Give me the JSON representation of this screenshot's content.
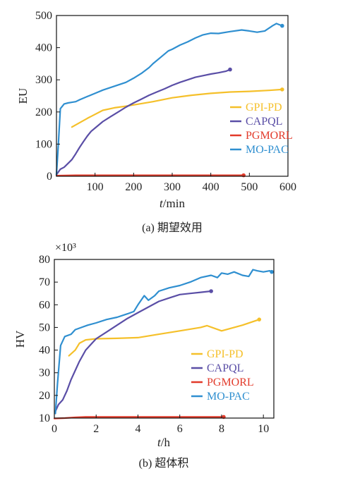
{
  "chart_data": [
    {
      "type": "line",
      "caption": "(a) 期望效用",
      "xlabel_var": "t",
      "xlabel_unit": "/min",
      "ylabel": "EU",
      "xlim": [
        0,
        600
      ],
      "ylim": [
        0,
        500
      ],
      "xticks": [
        100,
        200,
        300,
        400,
        500,
        600
      ],
      "yticks": [
        0,
        100,
        200,
        300,
        400,
        500
      ],
      "legend_position": "center-right",
      "series": [
        {
          "name": "GPI-PD",
          "color": "#f5c02a",
          "x": [
            40,
            80,
            120,
            150,
            180,
            200,
            250,
            300,
            350,
            400,
            450,
            500,
            550,
            585
          ],
          "y": [
            153,
            180,
            205,
            213,
            218,
            222,
            232,
            244,
            252,
            258,
            262,
            264,
            267,
            270
          ]
        },
        {
          "name": "CAPQL",
          "color": "#5a4ea6",
          "x": [
            0,
            10,
            20,
            30,
            40,
            50,
            60,
            70,
            80,
            90,
            100,
            120,
            140,
            160,
            180,
            200,
            220,
            240,
            260,
            280,
            300,
            320,
            340,
            360,
            380,
            400,
            420,
            440,
            450
          ],
          "y": [
            5,
            22,
            28,
            40,
            52,
            70,
            90,
            108,
            125,
            140,
            150,
            170,
            185,
            200,
            215,
            228,
            240,
            252,
            262,
            272,
            283,
            292,
            300,
            308,
            313,
            318,
            322,
            327,
            332
          ]
        },
        {
          "name": "PGMORL",
          "color": "#e23a2a",
          "x": [
            0,
            50,
            100,
            200,
            300,
            400,
            485
          ],
          "y": [
            2,
            3,
            3,
            3,
            3,
            3,
            3
          ]
        },
        {
          "name": "MO-PAC",
          "color": "#2f8fd0",
          "x": [
            0,
            5,
            10,
            20,
            30,
            40,
            50,
            60,
            80,
            100,
            120,
            150,
            180,
            200,
            220,
            240,
            250,
            270,
            290,
            300,
            320,
            340,
            360,
            380,
            400,
            420,
            450,
            480,
            500,
            520,
            540,
            560,
            570,
            585
          ],
          "y": [
            5,
            100,
            210,
            225,
            228,
            230,
            232,
            238,
            248,
            258,
            268,
            280,
            292,
            305,
            320,
            338,
            350,
            370,
            390,
            395,
            408,
            418,
            430,
            440,
            445,
            444,
            450,
            455,
            452,
            448,
            452,
            468,
            475,
            468
          ]
        }
      ]
    },
    {
      "type": "line",
      "caption": "(b) 超体积",
      "scale_label": "×10³",
      "xlabel_var": "t",
      "xlabel_unit": "/h",
      "ylabel": "HV",
      "xlim": [
        0,
        10.5
      ],
      "ylim": [
        10,
        80
      ],
      "xticks": [
        0,
        2,
        4,
        6,
        8,
        10
      ],
      "yticks": [
        10,
        20,
        30,
        40,
        50,
        60,
        70,
        80
      ],
      "legend_position": "center-right",
      "series": [
        {
          "name": "GPI-PD",
          "color": "#f5c02a",
          "x": [
            0.7,
            1.0,
            1.2,
            1.5,
            2.0,
            3.0,
            4.0,
            5.0,
            6.0,
            7.0,
            7.3,
            8.0,
            9.0,
            9.8
          ],
          "y": [
            37.5,
            40,
            43,
            44.5,
            45,
            45.2,
            45.5,
            47,
            48.5,
            50,
            50.8,
            48.5,
            51,
            53.5
          ]
        },
        {
          "name": "CAPQL",
          "color": "#5a4ea6",
          "x": [
            0.05,
            0.2,
            0.4,
            0.6,
            0.8,
            1.0,
            1.2,
            1.5,
            1.8,
            2.0,
            2.5,
            3.0,
            3.5,
            4.0,
            4.5,
            5.0,
            5.5,
            6.0,
            6.5,
            7.0,
            7.5
          ],
          "y": [
            13,
            16,
            18,
            22,
            27,
            31,
            35,
            40,
            43,
            45,
            48,
            51,
            54,
            56.5,
            59,
            61.5,
            63,
            64.5,
            65,
            65.5,
            66
          ]
        },
        {
          "name": "PGMORL",
          "color": "#e23a2a",
          "x": [
            0,
            0.5,
            1.0,
            1.5,
            2.0,
            3.0,
            4.0,
            5.0,
            6.0,
            7.0,
            8.0,
            8.1
          ],
          "y": [
            9.8,
            10,
            10.3,
            10.5,
            10.5,
            10.5,
            10.5,
            10.5,
            10.5,
            10.5,
            10.5,
            10.5
          ]
        },
        {
          "name": "MO-PAC",
          "color": "#2f8fd0",
          "x": [
            0.05,
            0.15,
            0.3,
            0.5,
            0.8,
            1.0,
            1.3,
            1.6,
            2.0,
            2.5,
            3.0,
            3.5,
            3.8,
            4.0,
            4.3,
            4.5,
            4.8,
            5.0,
            5.5,
            6.0,
            6.5,
            7.0,
            7.5,
            7.8,
            8.0,
            8.3,
            8.6,
            9.0,
            9.3,
            9.5,
            9.7,
            10.0,
            10.3,
            10.4
          ],
          "y": [
            12,
            25,
            42,
            46,
            47,
            49,
            50,
            51,
            52,
            53.5,
            54.5,
            56,
            57,
            60,
            64,
            62,
            64,
            66,
            67.5,
            68.5,
            70,
            72,
            73,
            72,
            74,
            73.5,
            74.5,
            73,
            72.5,
            75.5,
            75,
            74.5,
            75,
            74.5
          ]
        }
      ]
    }
  ]
}
